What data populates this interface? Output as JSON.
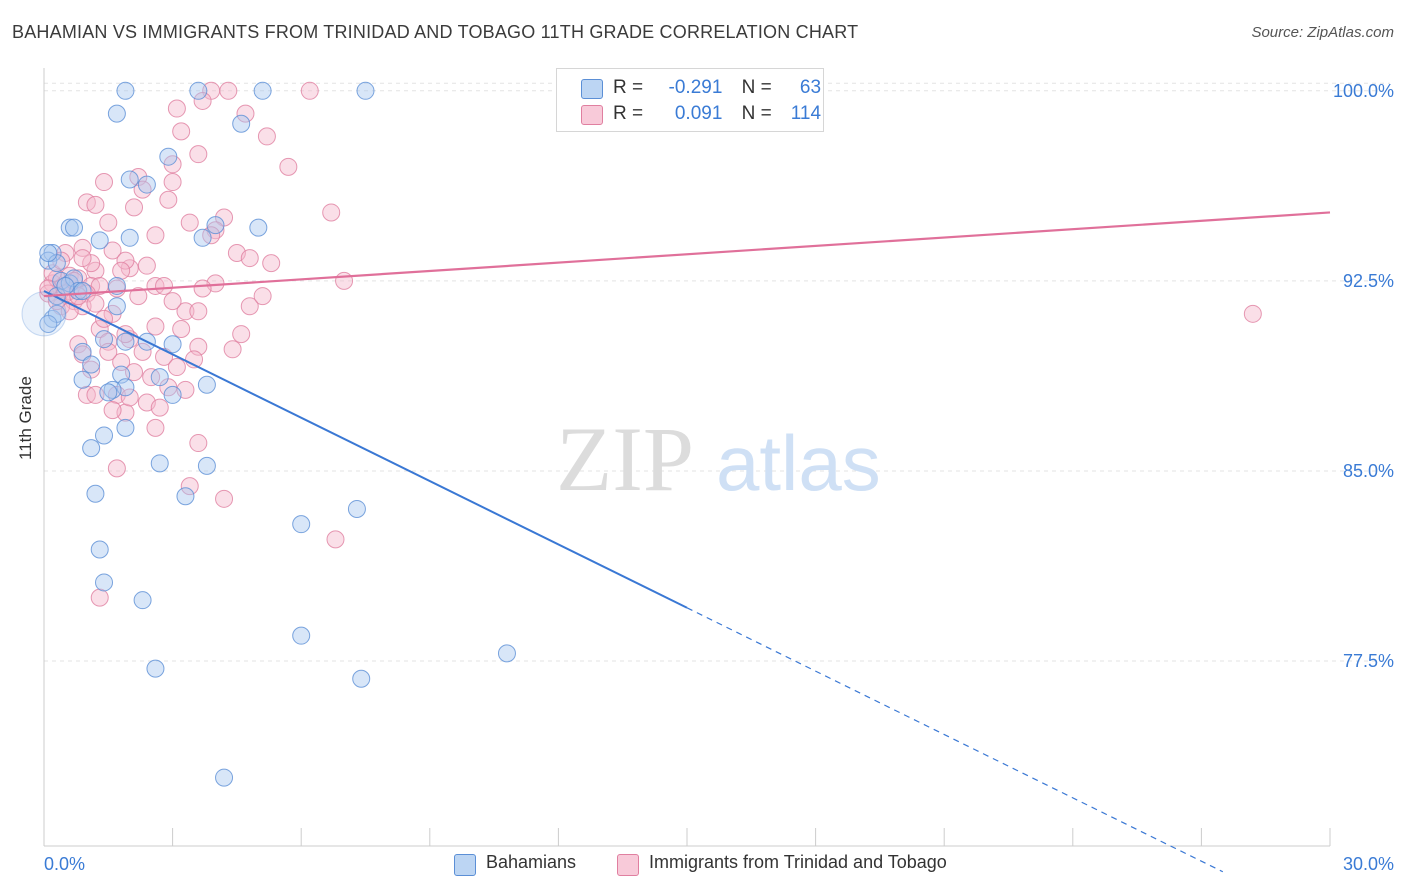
{
  "title": "BAHAMIAN VS IMMIGRANTS FROM TRINIDAD AND TOBAGO 11TH GRADE CORRELATION CHART",
  "source": "Source: ZipAtlas.com",
  "watermark": {
    "zip": "ZIP",
    "atlas": "atlas"
  },
  "legend": {
    "rows": [
      {
        "r_label": "R =",
        "r_value": "-0.291",
        "n_label": "N =",
        "n_value": "63"
      },
      {
        "r_label": "R =",
        "r_value": "0.091",
        "n_label": "N =",
        "n_value": "114"
      }
    ]
  },
  "bottom_legend": [
    "Bahamians",
    "Immigrants from Trinidad and Tobago"
  ],
  "colors": {
    "blue_fill": "#a8c8f0",
    "blue_stroke": "#5b8fd6",
    "blue_line": "#3a78d4",
    "pink_fill": "#f5b8cc",
    "pink_stroke": "#e07fa0",
    "pink_line": "#e0709a",
    "tick_text": "#3a7bd5",
    "grid": "#e3e3e3"
  },
  "chart_data": {
    "type": "scatter",
    "title": "BAHAMIAN VS IMMIGRANTS FROM TRINIDAD AND TOBAGO 11TH GRADE CORRELATION CHART",
    "xlabel": "",
    "ylabel": "11th Grade",
    "xlim": [
      0,
      30
    ],
    "ylim": [
      70.2,
      100.9
    ],
    "x_tick_labels": [
      "0.0%",
      "30.0%"
    ],
    "y_ticks": [
      77.5,
      85.0,
      92.5,
      100.0
    ],
    "y_tick_labels": [
      "77.5%",
      "85.0%",
      "92.5%",
      "100.0%"
    ],
    "grid": true,
    "legend_position": "top-center",
    "series": [
      {
        "name": "Bahamians",
        "R": -0.291,
        "N": 63,
        "trend": {
          "x0": 0.0,
          "y0": 92.1,
          "x1": 15.0,
          "y1": 79.6,
          "dashed_to_x": 27.5
        },
        "points": [
          [
            1.9,
            100.0
          ],
          [
            3.6,
            100.0
          ],
          [
            5.1,
            100.0
          ],
          [
            7.5,
            100.0
          ],
          [
            1.7,
            99.1
          ],
          [
            4.6,
            98.7
          ],
          [
            2.9,
            97.4
          ],
          [
            2.0,
            96.5
          ],
          [
            2.4,
            96.3
          ],
          [
            0.6,
            94.6
          ],
          [
            0.7,
            94.6
          ],
          [
            5.0,
            94.6
          ],
          [
            4.0,
            94.7
          ],
          [
            3.7,
            94.2
          ],
          [
            1.3,
            94.1
          ],
          [
            2.0,
            94.2
          ],
          [
            0.2,
            93.6
          ],
          [
            0.1,
            93.3
          ],
          [
            0.3,
            93.2
          ],
          [
            0.4,
            92.5
          ],
          [
            0.6,
            92.4
          ],
          [
            0.7,
            92.6
          ],
          [
            1.7,
            92.3
          ],
          [
            0.8,
            92.1
          ],
          [
            0.9,
            92.1
          ],
          [
            0.3,
            91.9
          ],
          [
            0.2,
            91.0
          ],
          [
            1.7,
            91.5
          ],
          [
            0.3,
            91.2
          ],
          [
            1.4,
            90.2
          ],
          [
            1.9,
            90.1
          ],
          [
            2.4,
            90.1
          ],
          [
            3.0,
            90.0
          ],
          [
            0.9,
            89.7
          ],
          [
            1.1,
            89.2
          ],
          [
            2.7,
            88.7
          ],
          [
            1.8,
            88.8
          ],
          [
            1.9,
            88.3
          ],
          [
            3.8,
            88.4
          ],
          [
            1.6,
            88.2
          ],
          [
            0.9,
            88.6
          ],
          [
            3.0,
            88.0
          ],
          [
            1.5,
            88.1
          ],
          [
            0.1,
            90.8
          ],
          [
            1.4,
            86.4
          ],
          [
            1.9,
            86.7
          ],
          [
            1.1,
            85.9
          ],
          [
            2.7,
            85.3
          ],
          [
            3.8,
            85.2
          ],
          [
            1.2,
            84.1
          ],
          [
            3.3,
            84.0
          ],
          [
            7.3,
            83.5
          ],
          [
            6.0,
            82.9
          ],
          [
            1.3,
            81.9
          ],
          [
            1.4,
            80.6
          ],
          [
            2.3,
            79.9
          ],
          [
            6.0,
            78.5
          ],
          [
            10.8,
            77.8
          ],
          [
            2.6,
            77.2
          ],
          [
            7.4,
            76.8
          ],
          [
            4.2,
            72.9
          ],
          [
            0.1,
            93.6
          ],
          [
            0.5,
            92.3
          ]
        ]
      },
      {
        "name": "Immigrants from Trinidad and Tobago",
        "R": 0.091,
        "N": 114,
        "trend": {
          "x0": 0.0,
          "y0": 91.9,
          "x1": 30.0,
          "y1": 95.2
        },
        "points": [
          [
            3.9,
            100.0
          ],
          [
            4.3,
            100.0
          ],
          [
            6.2,
            100.0
          ],
          [
            3.7,
            99.6
          ],
          [
            3.1,
            99.3
          ],
          [
            4.7,
            99.1
          ],
          [
            3.2,
            98.4
          ],
          [
            5.2,
            98.2
          ],
          [
            3.6,
            97.5
          ],
          [
            3.0,
            97.1
          ],
          [
            5.7,
            97.0
          ],
          [
            2.2,
            96.6
          ],
          [
            1.4,
            96.4
          ],
          [
            3.0,
            96.4
          ],
          [
            2.3,
            96.1
          ],
          [
            1.0,
            95.6
          ],
          [
            2.9,
            95.7
          ],
          [
            1.2,
            95.5
          ],
          [
            2.1,
            95.4
          ],
          [
            6.7,
            95.2
          ],
          [
            4.2,
            95.0
          ],
          [
            3.4,
            94.8
          ],
          [
            1.5,
            94.8
          ],
          [
            4.0,
            94.5
          ],
          [
            2.6,
            94.3
          ],
          [
            3.9,
            94.3
          ],
          [
            0.9,
            93.8
          ],
          [
            1.6,
            93.7
          ],
          [
            4.5,
            93.6
          ],
          [
            4.8,
            93.4
          ],
          [
            5.3,
            93.2
          ],
          [
            2.0,
            93.0
          ],
          [
            1.2,
            92.9
          ],
          [
            1.9,
            93.3
          ],
          [
            0.5,
            93.6
          ],
          [
            0.6,
            92.7
          ],
          [
            0.8,
            92.6
          ],
          [
            0.2,
            92.4
          ],
          [
            0.3,
            92.6
          ],
          [
            0.4,
            92.2
          ],
          [
            0.5,
            92.3
          ],
          [
            1.1,
            92.3
          ],
          [
            1.3,
            92.3
          ],
          [
            1.0,
            92.0
          ],
          [
            0.6,
            92.1
          ],
          [
            0.1,
            92.0
          ],
          [
            0.7,
            91.7
          ],
          [
            0.4,
            91.5
          ],
          [
            2.6,
            92.3
          ],
          [
            2.8,
            92.3
          ],
          [
            1.7,
            92.2
          ],
          [
            7.0,
            92.5
          ],
          [
            0.9,
            91.5
          ],
          [
            1.6,
            91.2
          ],
          [
            3.3,
            91.3
          ],
          [
            3.6,
            91.3
          ],
          [
            4.8,
            91.5
          ],
          [
            1.3,
            90.6
          ],
          [
            2.0,
            90.2
          ],
          [
            1.5,
            90.1
          ],
          [
            0.8,
            90.0
          ],
          [
            3.2,
            90.6
          ],
          [
            3.6,
            89.9
          ],
          [
            4.4,
            89.8
          ],
          [
            2.3,
            89.7
          ],
          [
            0.9,
            89.6
          ],
          [
            1.8,
            89.3
          ],
          [
            2.8,
            89.5
          ],
          [
            3.5,
            89.4
          ],
          [
            1.1,
            89.0
          ],
          [
            2.1,
            88.9
          ],
          [
            2.5,
            88.7
          ],
          [
            3.3,
            88.2
          ],
          [
            1.0,
            88.0
          ],
          [
            1.2,
            88.0
          ],
          [
            1.7,
            88.0
          ],
          [
            2.4,
            87.7
          ],
          [
            2.7,
            87.5
          ],
          [
            1.9,
            87.3
          ],
          [
            1.6,
            87.4
          ],
          [
            2.6,
            86.7
          ],
          [
            3.6,
            86.1
          ],
          [
            1.7,
            85.1
          ],
          [
            3.4,
            84.4
          ],
          [
            4.2,
            83.9
          ],
          [
            6.8,
            82.3
          ],
          [
            1.3,
            80.0
          ],
          [
            28.2,
            91.2
          ],
          [
            0.3,
            91.7
          ],
          [
            0.5,
            92.0
          ],
          [
            0.7,
            92.5
          ],
          [
            0.2,
            92.8
          ],
          [
            1.1,
            93.2
          ],
          [
            0.4,
            93.3
          ],
          [
            2.2,
            91.9
          ],
          [
            1.4,
            91.0
          ],
          [
            3.0,
            91.7
          ],
          [
            0.8,
            91.9
          ],
          [
            1.9,
            90.4
          ],
          [
            2.6,
            90.7
          ],
          [
            4.0,
            92.4
          ],
          [
            0.6,
            91.3
          ],
          [
            1.5,
            89.7
          ],
          [
            2.9,
            88.3
          ],
          [
            3.7,
            92.2
          ],
          [
            5.1,
            91.9
          ],
          [
            1.8,
            92.9
          ],
          [
            0.9,
            93.4
          ],
          [
            2.4,
            93.1
          ],
          [
            1.2,
            91.6
          ],
          [
            0.1,
            92.2
          ],
          [
            3.1,
            89.1
          ],
          [
            2.0,
            87.9
          ],
          [
            4.6,
            90.4
          ]
        ]
      }
    ]
  }
}
